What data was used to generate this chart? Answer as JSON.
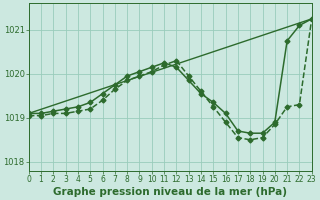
{
  "background_color": "#cce8e0",
  "grid_color": "#99ccbb",
  "line_color": "#2d6b2d",
  "title": "Graphe pression niveau de la mer (hPa)",
  "xlim": [
    0,
    23
  ],
  "ylim": [
    1017.8,
    1021.6
  ],
  "yticks": [
    1018,
    1019,
    1020,
    1021
  ],
  "xticks": [
    0,
    1,
    2,
    3,
    4,
    5,
    6,
    7,
    8,
    9,
    10,
    11,
    12,
    13,
    14,
    15,
    16,
    17,
    18,
    19,
    20,
    21,
    22,
    23
  ],
  "series": [
    {
      "x": [
        0,
        23
      ],
      "y": [
        1019.1,
        1021.25
      ],
      "style": "-",
      "marker": "None",
      "markersize": 0,
      "linewidth": 1.0,
      "zorder": 1
    },
    {
      "x": [
        0,
        1,
        2,
        3,
        4,
        5,
        6,
        7,
        8,
        9,
        10,
        11,
        12,
        13,
        14,
        15,
        16,
        17,
        18,
        19,
        20,
        21,
        22,
        23
      ],
      "y": [
        1019.1,
        1019.1,
        1019.15,
        1019.2,
        1019.25,
        1019.35,
        1019.55,
        1019.75,
        1019.95,
        1020.05,
        1020.15,
        1020.25,
        1020.15,
        1019.85,
        1019.55,
        1019.35,
        1019.1,
        1018.7,
        1018.65,
        1018.65,
        1018.9,
        1020.75,
        1021.1,
        1021.25
      ],
      "style": "-",
      "marker": "D",
      "markersize": 2.5,
      "linewidth": 1.1,
      "zorder": 3
    },
    {
      "x": [
        0,
        1,
        2,
        3,
        4,
        5,
        6,
        7,
        8,
        9,
        10,
        11,
        12,
        13,
        14,
        15,
        16,
        17,
        18,
        19,
        20,
        21,
        22,
        23
      ],
      "y": [
        1019.05,
        1019.05,
        1019.1,
        1019.1,
        1019.15,
        1019.2,
        1019.4,
        1019.65,
        1019.85,
        1019.95,
        1020.05,
        1020.2,
        1020.3,
        1019.95,
        1019.6,
        1019.25,
        1018.9,
        1018.55,
        1018.5,
        1018.55,
        1018.85,
        1019.25,
        1019.3,
        1021.25
      ],
      "style": "--",
      "marker": "D",
      "markersize": 2.5,
      "linewidth": 1.1,
      "zorder": 2
    }
  ],
  "title_fontsize": 7.5,
  "tick_fontsize": 6.0,
  "tick_color": "#2d6b2d",
  "axis_color": "#2d6b2d"
}
